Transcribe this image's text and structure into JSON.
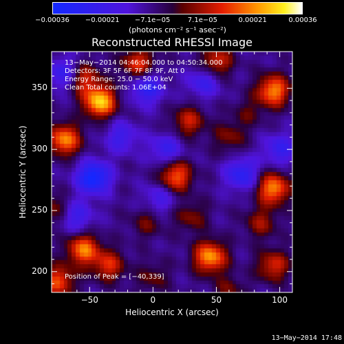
{
  "chart_data": {
    "type": "heatmap",
    "title": "Reconstructed RHESSI Image",
    "xlabel": "Heliocentric X (arcsec)",
    "ylabel": "Heliocentric Y (arcsec)",
    "xlim": [
      -80,
      110
    ],
    "ylim": [
      183,
      380
    ],
    "xticks": [
      -50,
      0,
      50,
      100
    ],
    "yticks": [
      200,
      250,
      300,
      350
    ],
    "xtick_labels": [
      "−50",
      "0",
      "50",
      "100"
    ],
    "ytick_labels": [
      "200",
      "250",
      "300",
      "350"
    ],
    "colorbar": {
      "ticks": [
        "−0.00036",
        "−0.00021",
        "−7.1e−05",
        "7.1e−05",
        "0.00021",
        "0.00036"
      ],
      "units": "(photons cm⁻² s⁻¹ asec⁻²)",
      "range": [
        -0.00036,
        0.00036
      ]
    },
    "annotations": [
      "13−May−2014 04:46:04.000 to 04:50:34.000",
      "Detectors: 3F 5F 6F 7F 8F 9F, Att 0",
      "Energy Range: 25.0 − 50.0 keV",
      "Clean  Total counts: 1.06E+04",
      "Position of Peak = [−40,339]"
    ],
    "peak": [
      -40,
      339
    ],
    "sources": [
      {
        "x": -42,
        "y": 339,
        "value": 0.00036
      },
      {
        "x": -70,
        "y": 308,
        "value": 0.0003
      },
      {
        "x": -55,
        "y": 358,
        "value": 0.0002
      },
      {
        "x": -12,
        "y": 370,
        "value": 0.00022
      },
      {
        "x": 50,
        "y": 372,
        "value": 0.0002
      },
      {
        "x": 95,
        "y": 348,
        "value": 0.0003
      },
      {
        "x": 28,
        "y": 323,
        "value": 0.00018
      },
      {
        "x": 60,
        "y": 310,
        "value": 0.00012
      },
      {
        "x": 18,
        "y": 278,
        "value": 0.00026
      },
      {
        "x": 95,
        "y": 268,
        "value": 0.0003
      },
      {
        "x": -80,
        "y": 252,
        "value": 0.00012
      },
      {
        "x": -5,
        "y": 240,
        "value": 0.0001
      },
      {
        "x": 30,
        "y": 245,
        "value": 0.00012
      },
      {
        "x": 85,
        "y": 240,
        "value": 0.00014
      },
      {
        "x": -55,
        "y": 218,
        "value": 0.00028
      },
      {
        "x": -35,
        "y": 205,
        "value": 0.0002
      },
      {
        "x": 45,
        "y": 212,
        "value": 0.00032
      },
      {
        "x": 95,
        "y": 205,
        "value": 0.0002
      },
      {
        "x": 0,
        "y": 195,
        "value": 0.0001
      },
      {
        "x": -75,
        "y": 192,
        "value": 0.00024
      },
      {
        "x": 60,
        "y": 185,
        "value": 0.0001
      },
      {
        "x": 75,
        "y": 330,
        "value": 8e-05
      }
    ],
    "minima": [
      {
        "x": -47,
        "y": 277,
        "value": -0.0003
      },
      {
        "x": -5,
        "y": 350,
        "value": -0.0002
      },
      {
        "x": 40,
        "y": 355,
        "value": -0.00015
      },
      {
        "x": 70,
        "y": 280,
        "value": -0.0002
      },
      {
        "x": -25,
        "y": 310,
        "value": -0.00014
      },
      {
        "x": 10,
        "y": 300,
        "value": -0.00015
      },
      {
        "x": -70,
        "y": 362,
        "value": -0.00018
      },
      {
        "x": 5,
        "y": 260,
        "value": -0.00012
      },
      {
        "x": 100,
        "y": 300,
        "value": -0.00016
      },
      {
        "x": -60,
        "y": 245,
        "value": -0.00014
      }
    ]
  },
  "footer": {
    "timestamp": "13−May−2014 17:48"
  }
}
